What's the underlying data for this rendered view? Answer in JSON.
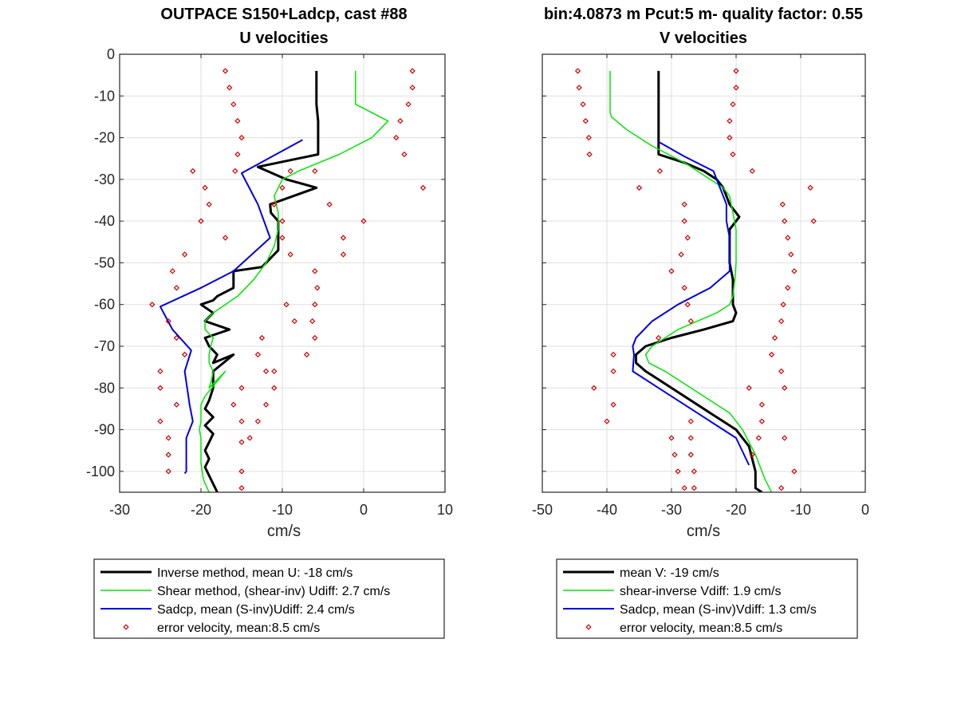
{
  "chart_data": [
    {
      "type": "line",
      "title": "OUTPACE S150+Ladcp, cast #88",
      "subtitle": "U velocities",
      "xlabel": "cm/s",
      "ylabel": "",
      "xlim": [
        -30,
        10
      ],
      "ylim": [
        -105,
        0
      ],
      "xticks": [
        -30,
        -20,
        -10,
        0,
        10
      ],
      "yticks": [
        0,
        -10,
        -20,
        -30,
        -40,
        -50,
        -60,
        -70,
        -80,
        -90,
        -100
      ],
      "grid": true,
      "legend_position": "below",
      "series": [
        {
          "name": "Inverse method, mean U:  -18 cm/s",
          "color": "#000000",
          "style": "line",
          "width": 3,
          "x": [
            -5.8,
            -5.8,
            -5.8,
            -5.6,
            -5.6,
            -13,
            -9.5,
            -5.8,
            -11.5,
            -11.4,
            -10.5,
            -10.5,
            -10.5,
            -12.5,
            -16,
            -16,
            -18,
            -18.5,
            -20,
            -18.5,
            -19.5,
            -16.5,
            -19.5,
            -19,
            -18,
            -18.5,
            -16,
            -18.5,
            -18.5,
            -19,
            -19.5,
            -18.5,
            -19.5,
            -18.5,
            -19,
            -19.5,
            -19,
            -19.5,
            -19,
            -18.5,
            -18
          ],
          "y": [
            -4,
            -8,
            -12,
            -16,
            -24,
            -27,
            -30,
            -32,
            -36,
            -38,
            -40,
            -44,
            -47,
            -51,
            -52,
            -56,
            -58,
            -59,
            -60,
            -62,
            -64,
            -66,
            -68,
            -70,
            -72,
            -74,
            -72,
            -76,
            -80,
            -83,
            -85,
            -87,
            -89,
            -91,
            -93,
            -95,
            -97,
            -99,
            -101,
            -103,
            -105
          ]
        },
        {
          "name": "Shear method, (shear-inv)  Udiff:  2.7 cm/s",
          "color": "#00e600",
          "style": "line",
          "width": 1.5,
          "x": [
            -1,
            -1,
            -1,
            3,
            1,
            -3,
            -8,
            -10,
            -11,
            -10.5,
            -10.5,
            -11,
            -12,
            -13.5,
            -15.5,
            -17,
            -18.5,
            -19.5,
            -19.5,
            -18.5,
            -18.8,
            -19,
            -19,
            -18.5,
            -18.7,
            -19,
            -17,
            -19.5,
            -20,
            -20,
            -20,
            -20.2,
            -20,
            -20,
            -20,
            -20,
            -19.7,
            -19
          ],
          "y": [
            -4,
            -8,
            -12,
            -16,
            -20,
            -24,
            -28,
            -30,
            -34,
            -38,
            -42,
            -46,
            -50,
            -54,
            -58,
            -60,
            -62,
            -64,
            -66,
            -68,
            -70,
            -72,
            -74,
            -76,
            -78,
            -80,
            -76,
            -82,
            -84,
            -86,
            -88,
            -90,
            -92,
            -94,
            -96,
            -98,
            -102,
            -105
          ]
        },
        {
          "name": "Sadcp, mean (S-inv)Udiff: 2.4 cm/s",
          "color": "#0000e6",
          "style": "line",
          "width": 2,
          "x": [
            -7.5,
            -15,
            -13,
            -11.5,
            -16,
            -20,
            -25,
            -23.5,
            -21.2,
            -22,
            -21.7,
            -21.4,
            -21,
            -21.8,
            -21.8,
            -21.8,
            -22
          ],
          "y": [
            -20.5,
            -28.5,
            -36,
            -44,
            -52,
            -56,
            -60.5,
            -66,
            -71,
            -76,
            -80,
            -84,
            -88,
            -92,
            -96,
            -100,
            -100.5
          ]
        },
        {
          "name": "error velocity, mean:8.5 cm/s",
          "color": "#d00000",
          "style": "marker",
          "x": [
            -17,
            -16.5,
            -16,
            -15.5,
            -15,
            -15.5,
            -15.8,
            -21,
            -19.5,
            -19,
            -20,
            -17,
            -22,
            -23.5,
            -23,
            -26,
            -24,
            -23,
            -22,
            -25,
            -25,
            -23,
            -25,
            -24,
            -24,
            -24,
            -15,
            -15,
            -15,
            -15,
            -16,
            -15,
            -11,
            -7,
            -6,
            -6.3,
            -6,
            -5.7,
            -6,
            -9,
            -10,
            -10,
            -11,
            -10,
            -9,
            -9.5,
            -8.5,
            -12.5,
            -13,
            -12,
            -11,
            -12,
            -13,
            -14,
            6,
            6,
            5.5,
            4.5,
            4,
            5,
            -2.5,
            -2.5,
            0,
            -4.2,
            -6,
            7.3
          ],
          "y": [
            -4,
            -8,
            -12,
            -16,
            -20,
            -24,
            -28,
            -28,
            -32,
            -36,
            -40,
            -44,
            -48,
            -52,
            -56,
            -60,
            -64,
            -68,
            -72,
            -76,
            -80,
            -84,
            -88,
            -92,
            -96,
            -100,
            -104,
            -100,
            -93,
            -88,
            -84,
            -80,
            -76,
            -72,
            -68,
            -64,
            -60,
            -56,
            -52,
            -48,
            -44,
            -40,
            -36,
            -32,
            -28,
            -60,
            -64,
            -68,
            -72,
            -76,
            -80,
            -84,
            -88,
            -92,
            -4,
            -8,
            -12,
            -16,
            -20,
            -24,
            -44,
            -48,
            -40,
            -36,
            -28,
            -32
          ]
        }
      ]
    },
    {
      "type": "line",
      "title": "bin:4.0873 m  Pcut:5 m- quality factor:  0.55",
      "subtitle": "V velocities",
      "xlabel": "cm/s",
      "ylabel": "",
      "xlim": [
        -50,
        0
      ],
      "ylim": [
        -105,
        0
      ],
      "xticks": [
        -50,
        -40,
        -30,
        -20,
        -10,
        0
      ],
      "yticks": [
        0,
        -10,
        -20,
        -30,
        -40,
        -50,
        -60,
        -70,
        -80,
        -90,
        -100
      ],
      "grid": true,
      "legend_position": "below",
      "series": [
        {
          "name": "mean V:  -19 cm/s",
          "color": "#000000",
          "style": "line",
          "width": 3,
          "x": [
            -32,
            -32,
            -32,
            -32,
            -32,
            -32,
            -28,
            -25,
            -23,
            -22,
            -21,
            -19.5,
            -21,
            -21,
            -21,
            -20.5,
            -20.5,
            -20.5,
            -20,
            -20.5,
            -25,
            -30,
            -34,
            -35.5,
            -35.5,
            -34,
            -32,
            -30,
            -28,
            -26,
            -24,
            -22,
            -20,
            -18,
            -17,
            -17,
            -16
          ],
          "y": [
            -4,
            -8,
            -12,
            -16,
            -20,
            -24,
            -26,
            -28,
            -30,
            -32,
            -36,
            -39,
            -42,
            -46,
            -50,
            -54,
            -58,
            -60,
            -62,
            -64,
            -66,
            -68,
            -70,
            -72,
            -74,
            -76,
            -78,
            -80,
            -82,
            -84,
            -86,
            -88,
            -90,
            -94,
            -100,
            -104,
            -105
          ]
        },
        {
          "name": "shear-inverse Vdiff:  1.9 cm/s",
          "color": "#00e600",
          "style": "line",
          "width": 1.5,
          "x": [
            -39.5,
            -39.5,
            -39.5,
            -39.5,
            -39.3,
            -37,
            -33,
            -28,
            -24,
            -22,
            -21,
            -20.5,
            -20,
            -20,
            -20,
            -20.2,
            -20.5,
            -21,
            -23,
            -26,
            -29,
            -31,
            -33,
            -34,
            -33.5,
            -31,
            -29,
            -27,
            -25,
            -23,
            -21,
            -20,
            -19,
            -17,
            -15.5,
            -14.5
          ],
          "y": [
            -4,
            -8,
            -12,
            -14,
            -15,
            -18,
            -22,
            -26,
            -30,
            -32,
            -34,
            -38,
            -42,
            -46,
            -50,
            -54,
            -58,
            -60,
            -62,
            -64,
            -66,
            -68,
            -70,
            -72,
            -74,
            -76,
            -78,
            -80,
            -82,
            -84,
            -86,
            -88,
            -90,
            -96,
            -102,
            -105
          ]
        },
        {
          "name": "Sadcp, mean (S-inv)Vdiff: 1.3 cm/s",
          "color": "#0000e6",
          "style": "line",
          "width": 2,
          "x": [
            -32,
            -28,
            -23.5,
            -21.5,
            -21.5,
            -21,
            -21,
            -21,
            -24,
            -29,
            -33,
            -35.5,
            -36,
            -35.8,
            -36,
            -32,
            -28,
            -24,
            -20,
            -18
          ],
          "y": [
            -21,
            -24.5,
            -28,
            -36,
            -40,
            -44,
            -48,
            -52,
            -56,
            -60,
            -64,
            -68,
            -70,
            -72,
            -76,
            -80,
            -84,
            -88,
            -92,
            -98.5
          ]
        },
        {
          "name": "error velocity, mean:8.5 cm/s",
          "color": "#d00000",
          "style": "marker",
          "x": [
            -44.5,
            -44.3,
            -43.7,
            -43.3,
            -42.8,
            -42.7,
            -31.8,
            -35,
            -28,
            -28,
            -27.5,
            -28.5,
            -30,
            -28,
            -27.5,
            -27,
            -32,
            -39,
            -39,
            -42,
            -39,
            -40,
            -30,
            -29.5,
            -29,
            -28,
            -27,
            -27,
            -27,
            -26.5,
            -26.5,
            -20,
            -20,
            -20.5,
            -21,
            -21,
            -20.5,
            -17.5,
            -12.8,
            -12.5,
            -12,
            -11.5,
            -11,
            -12,
            -12.7,
            -13,
            -14,
            -14.5,
            -13,
            -12.5,
            -16,
            -16,
            -16.5,
            -17.5,
            -8,
            -8.5,
            -11,
            -13,
            -12.5,
            -18
          ],
          "y": [
            -4,
            -8,
            -12,
            -16,
            -20,
            -24,
            -28,
            -32,
            -36,
            -40,
            -44,
            -48,
            -52,
            -56,
            -60,
            -64,
            -68,
            -72,
            -76,
            -80,
            -84,
            -88,
            -92,
            -96,
            -100,
            -104,
            -88,
            -92,
            -96,
            -100,
            -104,
            -4,
            -8,
            -12,
            -16,
            -20,
            -24,
            -28,
            -36,
            -40,
            -44,
            -48,
            -52,
            -56,
            -60,
            -64,
            -68,
            -72,
            -76,
            -80,
            -84,
            -88,
            -92,
            -96,
            -40,
            -32,
            -100,
            -104,
            -92,
            -80
          ]
        }
      ]
    }
  ],
  "legends": [
    {
      "entries": [
        {
          "label": "Inverse method, mean U:  -18 cm/s",
          "color": "#000000",
          "style": "line",
          "width": 3
        },
        {
          "label": "Shear method, (shear-inv)  Udiff:  2.7 cm/s",
          "color": "#00e600",
          "style": "line",
          "width": 1.5
        },
        {
          "label": "Sadcp, mean (S-inv)Udiff: 2.4 cm/s",
          "color": "#0000e6",
          "style": "line",
          "width": 2
        },
        {
          "label": "error velocity, mean:8.5 cm/s",
          "color": "#d00000",
          "style": "marker"
        }
      ]
    },
    {
      "entries": [
        {
          "label": "mean V:  -19 cm/s",
          "color": "#000000",
          "style": "line",
          "width": 3
        },
        {
          "label": "shear-inverse Vdiff:  1.9 cm/s",
          "color": "#00e600",
          "style": "line",
          "width": 1.5
        },
        {
          "label": "Sadcp, mean (S-inv)Vdiff: 1.3 cm/s",
          "color": "#0000e6",
          "style": "line",
          "width": 2
        },
        {
          "label": "error velocity, mean:8.5 cm/s",
          "color": "#d00000",
          "style": "marker"
        }
      ]
    }
  ]
}
